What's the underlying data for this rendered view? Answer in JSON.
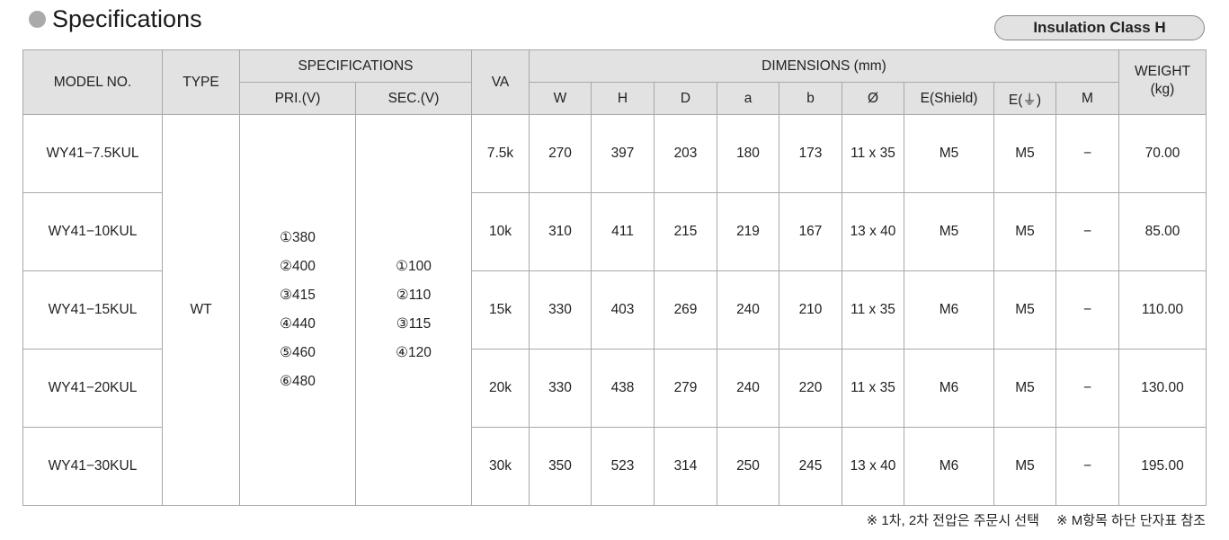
{
  "title": "Specifications",
  "badge": "Insulation Class H",
  "header": {
    "model": "MODEL NO.",
    "type": "TYPE",
    "specifications": "SPECIFICATIONS",
    "pri": "PRI.(V)",
    "sec": "SEC.(V)",
    "va": "VA",
    "dimensions": "DIMENSIONS (mm)",
    "weight": "WEIGHT\n(kg)",
    "dims": [
      "W",
      "H",
      "D",
      "a",
      "b",
      "Ø",
      "E(Shield)",
      "E(⏚)",
      "M"
    ]
  },
  "type_value": "WT",
  "pri_values": [
    "①380",
    "②400",
    "③415",
    "④440",
    "⑤460",
    "⑥480"
  ],
  "sec_values": [
    "①100",
    "②110",
    "③115",
    "④120"
  ],
  "rows": [
    {
      "model": "WY41−7.5KUL",
      "va": "7.5k",
      "dims": [
        "270",
        "397",
        "203",
        "180",
        "173",
        "11 x 35",
        "M5",
        "M5",
        "−"
      ],
      "weight": "70.00"
    },
    {
      "model": "WY41−10KUL",
      "va": "10k",
      "dims": [
        "310",
        "411",
        "215",
        "219",
        "167",
        "13 x 40",
        "M5",
        "M5",
        "−"
      ],
      "weight": "85.00"
    },
    {
      "model": "WY41−15KUL",
      "va": "15k",
      "dims": [
        "330",
        "403",
        "269",
        "240",
        "210",
        "11 x 35",
        "M6",
        "M5",
        "−"
      ],
      "weight": "110.00"
    },
    {
      "model": "WY41−20KUL",
      "va": "20k",
      "dims": [
        "330",
        "438",
        "279",
        "240",
        "220",
        "11 x 35",
        "M6",
        "M5",
        "−"
      ],
      "weight": "130.00"
    },
    {
      "model": "WY41−30KUL",
      "va": "30k",
      "dims": [
        "350",
        "523",
        "314",
        "250",
        "245",
        "13 x 40",
        "M6",
        "M5",
        "−"
      ],
      "weight": "195.00"
    }
  ],
  "notes": "※ 1차, 2차 전압은 주문시 선택 　※ M항목 하단 단자표 참조"
}
